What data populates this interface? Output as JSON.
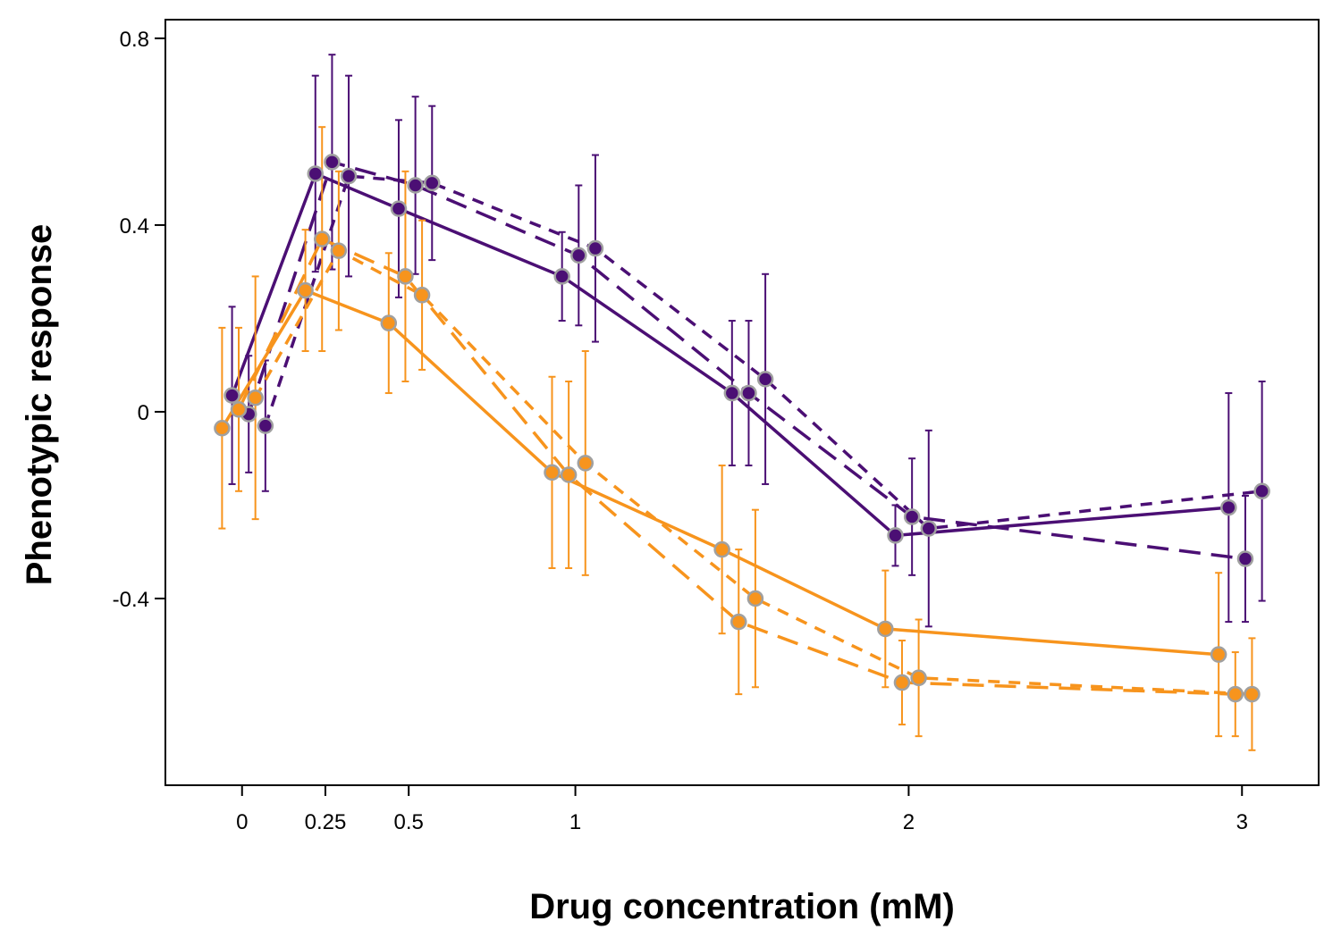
{
  "chart_data": {
    "type": "line",
    "title": "",
    "xlabel": "Drug concentration (mM)",
    "ylabel": "Phenotypic response",
    "xlim": [
      -0.23,
      3.23
    ],
    "ylim": [
      -0.8,
      0.84
    ],
    "x_ticks": [
      0,
      0.25,
      0.5,
      1,
      2,
      3
    ],
    "x_tick_labels": [
      "0",
      "0.25",
      "0.5",
      "1",
      "2",
      "3"
    ],
    "y_ticks": [
      -0.4,
      0,
      0.4,
      0.8
    ],
    "y_tick_labels": [
      "-0.4",
      "0",
      "0.4",
      "0.8"
    ],
    "grid": false,
    "legend": "none",
    "colors": {
      "purple": "#4b0f74",
      "orange": "#f7941d",
      "marker_edge": "#a0a0a0"
    },
    "series": [
      {
        "color": "purple",
        "line_style": "solid",
        "points": [
          {
            "x": -0.03,
            "y": 0.035,
            "err": 0.19
          },
          {
            "x": 0.22,
            "y": 0.51,
            "err": 0.21
          },
          {
            "x": 0.47,
            "y": 0.435,
            "err": 0.19
          },
          {
            "x": 0.96,
            "y": 0.29,
            "err": 0.095
          },
          {
            "x": 1.47,
            "y": 0.04,
            "err": 0.155
          },
          {
            "x": 1.96,
            "y": -0.265,
            "err": 0.065
          },
          {
            "x": 2.96,
            "y": -0.205,
            "err": 0.245
          }
        ]
      },
      {
        "color": "purple",
        "line_style": "long-dash",
        "points": [
          {
            "x": 0.02,
            "y": -0.005,
            "err": 0.125
          },
          {
            "x": 0.27,
            "y": 0.535,
            "err": 0.23
          },
          {
            "x": 0.52,
            "y": 0.485,
            "err": 0.19
          },
          {
            "x": 1.01,
            "y": 0.335,
            "err": 0.15
          },
          {
            "x": 1.52,
            "y": 0.04,
            "err": 0.155
          },
          {
            "x": 2.01,
            "y": -0.225,
            "err": 0.125
          },
          {
            "x": 3.01,
            "y": -0.315,
            "err": 0.135
          }
        ]
      },
      {
        "color": "purple",
        "line_style": "short-dash",
        "points": [
          {
            "x": 0.07,
            "y": -0.03,
            "err": 0.14
          },
          {
            "x": 0.32,
            "y": 0.505,
            "err": 0.215
          },
          {
            "x": 0.57,
            "y": 0.49,
            "err": 0.165
          },
          {
            "x": 1.06,
            "y": 0.35,
            "err": 0.2
          },
          {
            "x": 1.57,
            "y": 0.07,
            "err": 0.225
          },
          {
            "x": 2.06,
            "y": -0.25,
            "err": 0.21
          },
          {
            "x": 3.06,
            "y": -0.17,
            "err": 0.235
          }
        ]
      },
      {
        "color": "orange",
        "line_style": "solid",
        "points": [
          {
            "x": -0.06,
            "y": -0.035,
            "err": 0.215
          },
          {
            "x": 0.19,
            "y": 0.26,
            "err": 0.13
          },
          {
            "x": 0.44,
            "y": 0.19,
            "err": 0.15
          },
          {
            "x": 0.93,
            "y": -0.13,
            "err": 0.205
          },
          {
            "x": 1.44,
            "y": -0.295,
            "err": 0.18
          },
          {
            "x": 1.93,
            "y": -0.465,
            "err": 0.125
          },
          {
            "x": 2.93,
            "y": -0.52,
            "err": 0.175
          }
        ]
      },
      {
        "color": "orange",
        "line_style": "long-dash",
        "points": [
          {
            "x": -0.01,
            "y": 0.005,
            "err": 0.175
          },
          {
            "x": 0.24,
            "y": 0.37,
            "err": 0.24
          },
          {
            "x": 0.49,
            "y": 0.29,
            "err": 0.225
          },
          {
            "x": 0.98,
            "y": -0.135,
            "err": 0.2
          },
          {
            "x": 1.49,
            "y": -0.45,
            "err": 0.155
          },
          {
            "x": 1.98,
            "y": -0.58,
            "err": 0.09
          },
          {
            "x": 2.98,
            "y": -0.605,
            "err": 0.09
          }
        ]
      },
      {
        "color": "orange",
        "line_style": "short-dash",
        "points": [
          {
            "x": 0.04,
            "y": 0.03,
            "err": 0.26
          },
          {
            "x": 0.29,
            "y": 0.345,
            "err": 0.17
          },
          {
            "x": 0.54,
            "y": 0.25,
            "err": 0.16
          },
          {
            "x": 1.03,
            "y": -0.11,
            "err": 0.24
          },
          {
            "x": 1.54,
            "y": -0.4,
            "err": 0.19
          },
          {
            "x": 2.03,
            "y": -0.57,
            "err": 0.125
          },
          {
            "x": 3.03,
            "y": -0.605,
            "err": 0.12
          }
        ]
      }
    ]
  }
}
